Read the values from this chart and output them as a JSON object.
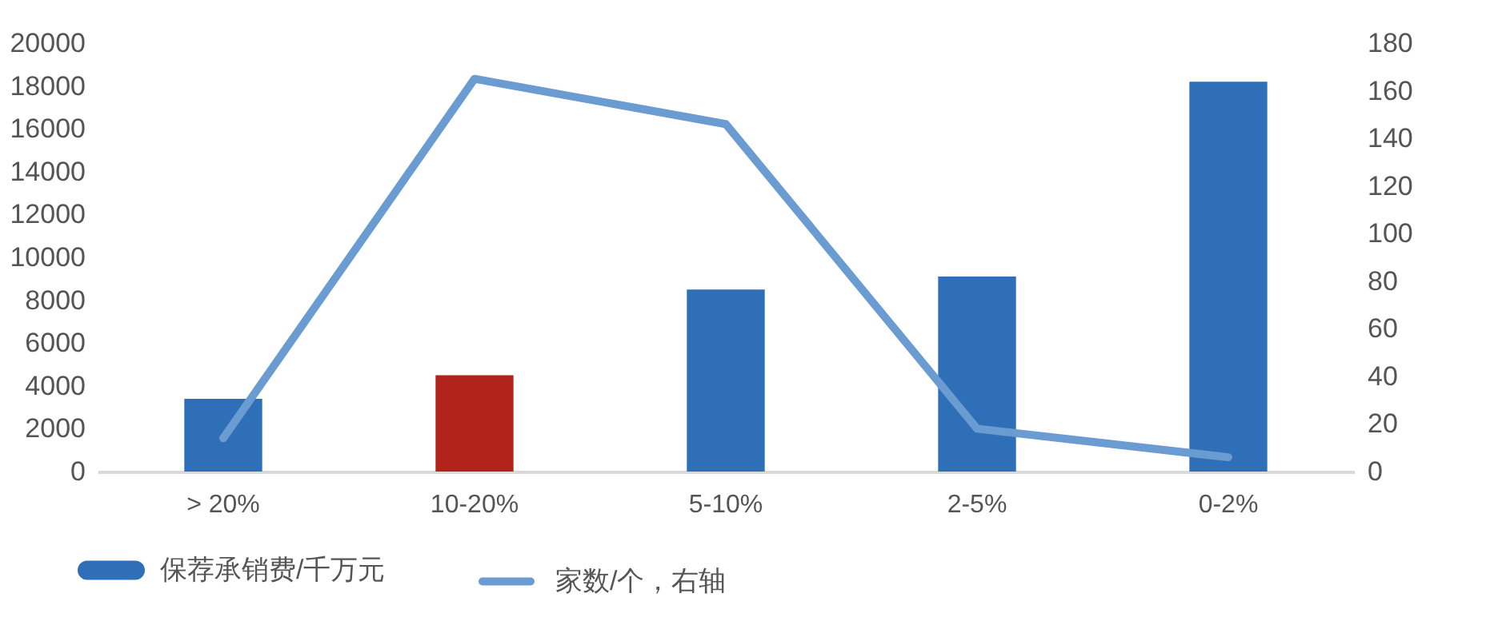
{
  "chart_data": {
    "type": "bar",
    "categories": [
      "> 20%",
      "10-20%",
      "5-10%",
      "2-5%",
      "0-2%"
    ],
    "series": [
      {
        "name": "保荐承销费/千万元",
        "color": "#2e6fb7",
        "colors": [
          "#2e6fb7",
          "#b0241c",
          "#2e6fb7",
          "#2e6fb7",
          "#2e6fb7"
        ],
        "values": [
          3400,
          4500,
          8500,
          9100,
          18200
        ]
      },
      {
        "name": "家数/个，右轴",
        "type": "line",
        "axis": "y2",
        "color": "#6a9bd1",
        "values": [
          14,
          165,
          146,
          18,
          6
        ]
      }
    ],
    "ylim": [
      0,
      20000
    ],
    "yticks": [
      0,
      2000,
      4000,
      6000,
      8000,
      10000,
      12000,
      14000,
      16000,
      18000,
      20000
    ],
    "y2lim": [
      0,
      180
    ],
    "y2ticks": [
      0,
      20,
      40,
      60,
      80,
      100,
      120,
      140,
      160,
      180
    ],
    "legend": "bottom",
    "grid": false,
    "marker": "none",
    "line_style": "solid"
  }
}
